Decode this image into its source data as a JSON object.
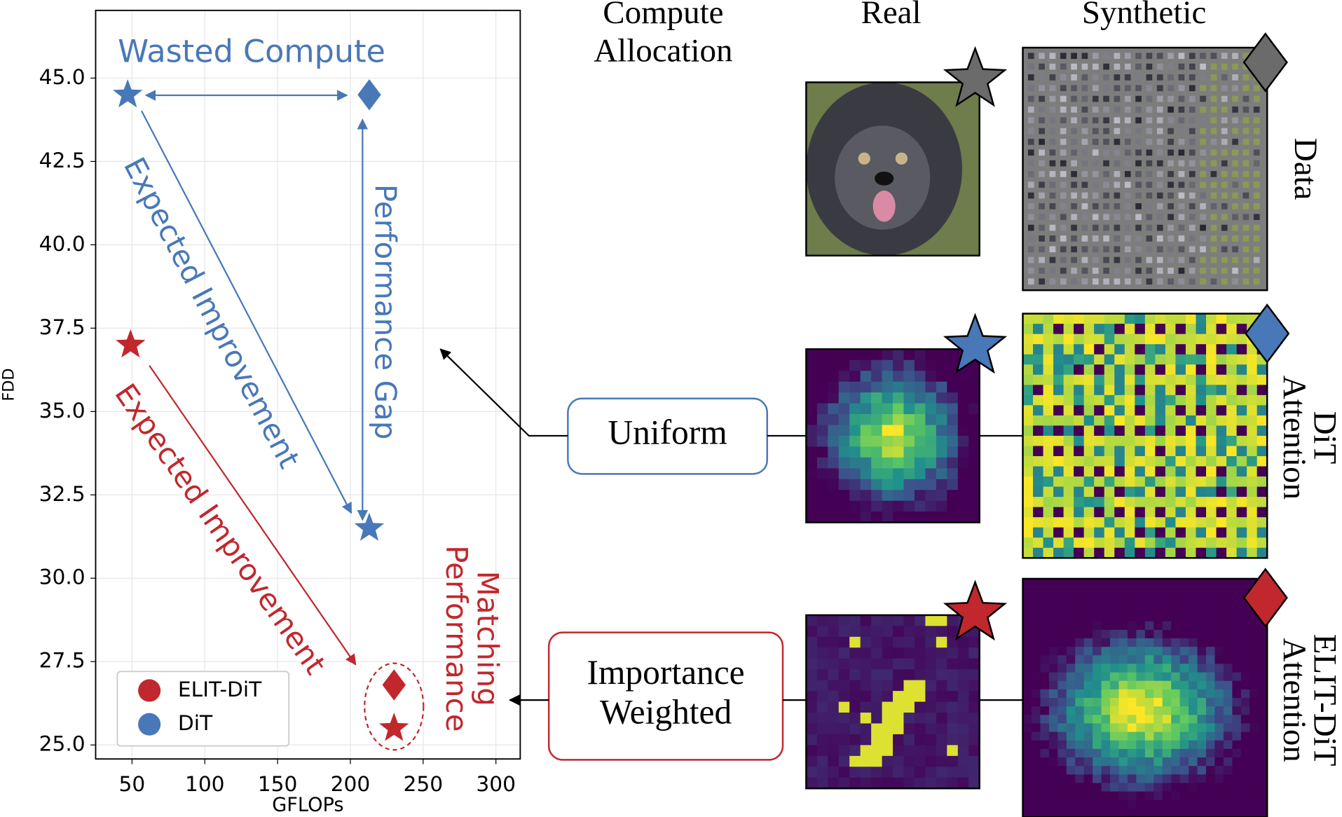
{
  "chart_data": {
    "type": "scatter",
    "xlabel": "GFLOPs",
    "ylabel": "FDD",
    "xlim": [
      25,
      316.7
    ],
    "ylim": [
      24.58,
      47.03
    ],
    "xticks": [
      50,
      100,
      150,
      200,
      250,
      300
    ],
    "yticks": [
      {
        "value": 25,
        "label": "25.0"
      },
      {
        "value": 27.5,
        "label": "27.5"
      },
      {
        "value": 30,
        "label": "30.0"
      },
      {
        "value": 32.5,
        "label": "32.5"
      },
      {
        "value": 35,
        "label": "35.0"
      },
      {
        "value": 37.5,
        "label": "37.5"
      },
      {
        "value": 40,
        "label": "40.0"
      },
      {
        "value": 42.5,
        "label": "42.5"
      },
      {
        "value": 45,
        "label": "45.0"
      }
    ],
    "grid": true,
    "legend": "lower left",
    "series": [
      {
        "name": "ELIT-DiT",
        "color": "#c0282d",
        "x": [
          49,
          230,
          230
        ],
        "y": [
          37,
          26.8,
          25.5
        ],
        "markers": [
          "star",
          "diamond",
          "star"
        ]
      },
      {
        "name": "DiT",
        "color": "#4878b8",
        "x": [
          47,
          213,
          213
        ],
        "y": [
          44.5,
          44.5,
          31.5
        ],
        "markers": [
          "star",
          "diamond",
          "star"
        ]
      }
    ],
    "annotations": [
      {
        "text": "Wasted Compute",
        "color": "#4878b8"
      },
      {
        "text": "Expected Improvement",
        "color": "#4878b8"
      },
      {
        "text": "Performance Gap",
        "color": "#4878b8"
      },
      {
        "text": "Expected Improvement",
        "color": "#c0282d"
      },
      {
        "text": "Matching",
        "color": "#c0282d"
      },
      {
        "text": "Performance",
        "color": "#c0282d"
      }
    ]
  },
  "panel": {
    "allocation": [
      "Compute",
      "Allocation"
    ],
    "real": "Real",
    "synthetic": "Synthetic",
    "methods": [
      [
        "Uniform"
      ],
      [
        "Importance",
        "Weighted"
      ]
    ],
    "rows": [
      [
        "Data"
      ],
      [
        "DiT",
        "Attention"
      ],
      [
        "ELIT-DiT",
        "Attention"
      ]
    ]
  }
}
